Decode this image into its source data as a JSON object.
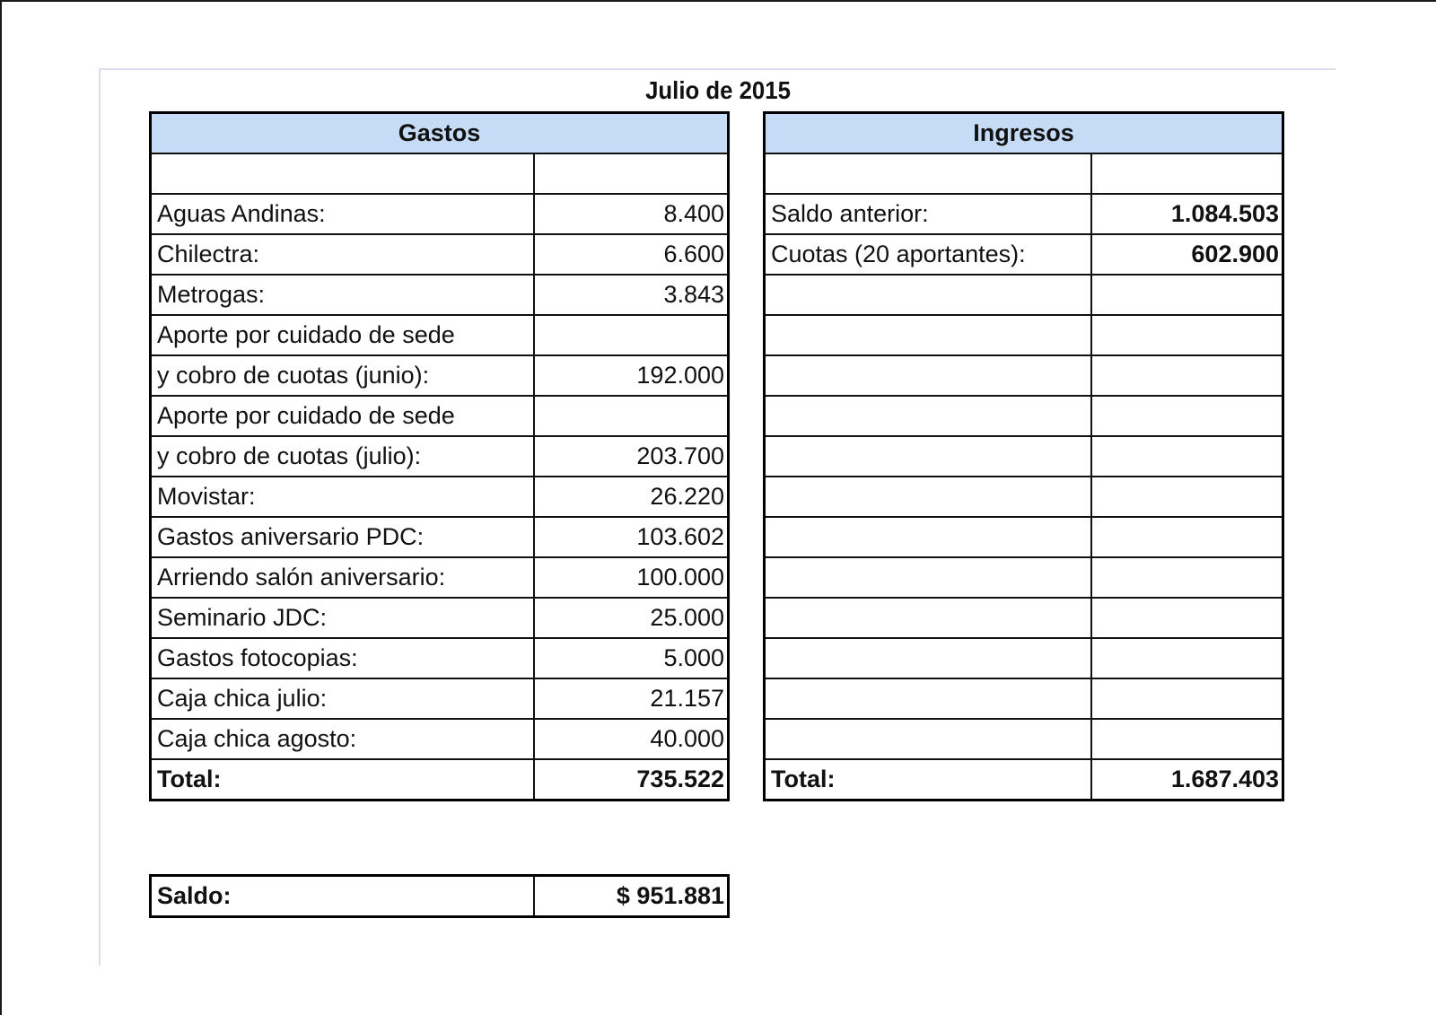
{
  "title": "Julio de 2015",
  "gastos": {
    "header": "Gastos",
    "rows": [
      {
        "label": "",
        "value": ""
      },
      {
        "label": "Aguas Andinas:",
        "value": "8.400"
      },
      {
        "label": "Chilectra:",
        "value": "6.600"
      },
      {
        "label": "Metrogas:",
        "value": "3.843"
      },
      {
        "label": "Aporte por cuidado de sede",
        "value": ""
      },
      {
        "label": "y cobro de cuotas (junio):",
        "value": "192.000"
      },
      {
        "label": "Aporte por cuidado de sede",
        "value": ""
      },
      {
        "label": "y cobro de cuotas (julio):",
        "value": "203.700"
      },
      {
        "label": "Movistar:",
        "value": "26.220"
      },
      {
        "label": "Gastos aniversario PDC:",
        "value": "103.602"
      },
      {
        "label": "Arriendo salón aniversario:",
        "value": "100.000"
      },
      {
        "label": "Seminario JDC:",
        "value": "25.000"
      },
      {
        "label": "Gastos fotocopias:",
        "value": "5.000"
      },
      {
        "label": "Caja chica julio:",
        "value": "21.157"
      },
      {
        "label": "Caja chica agosto:",
        "value": "40.000"
      }
    ],
    "total": {
      "label": "Total:",
      "value": "735.522"
    }
  },
  "ingresos": {
    "header": "Ingresos",
    "rows": [
      {
        "label": "",
        "value": ""
      },
      {
        "label": "Saldo anterior:",
        "value": "1.084.503"
      },
      {
        "label": "Cuotas (20 aportantes):",
        "value": "602.900"
      },
      {
        "label": "",
        "value": ""
      },
      {
        "label": "",
        "value": ""
      },
      {
        "label": "",
        "value": ""
      },
      {
        "label": "",
        "value": ""
      },
      {
        "label": "",
        "value": ""
      },
      {
        "label": "",
        "value": ""
      },
      {
        "label": "",
        "value": ""
      },
      {
        "label": "",
        "value": ""
      },
      {
        "label": "",
        "value": ""
      },
      {
        "label": "",
        "value": ""
      },
      {
        "label": "",
        "value": ""
      },
      {
        "label": "",
        "value": ""
      }
    ],
    "total": {
      "label": "Total:",
      "value": "1.687.403"
    }
  },
  "saldo": {
    "label": "Saldo:",
    "value": "$ 951.881"
  },
  "colors": {
    "header_fill": "#c6dbf5",
    "border": "#000000",
    "frame": "#dcdcec"
  }
}
